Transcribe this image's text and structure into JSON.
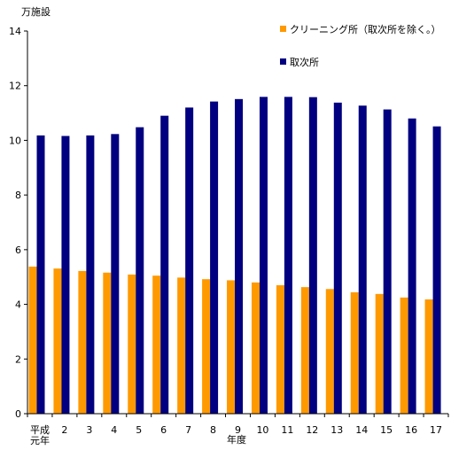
{
  "chart_data": {
    "type": "bar",
    "ylabel": "万施設",
    "xlabel": "年度",
    "categories": [
      "平成元年",
      "2",
      "3",
      "4",
      "5",
      "6",
      "7",
      "8",
      "9",
      "10",
      "11",
      "12",
      "13",
      "14",
      "15",
      "16",
      "17"
    ],
    "category_tick_lines": [
      [
        "平成",
        "元年"
      ],
      [
        "2"
      ],
      [
        "3"
      ],
      [
        "4"
      ],
      [
        "5"
      ],
      [
        "6"
      ],
      [
        "7"
      ],
      [
        "8"
      ],
      [
        "9"
      ],
      [
        "10"
      ],
      [
        "11"
      ],
      [
        "12"
      ],
      [
        "13"
      ],
      [
        "14"
      ],
      [
        "15"
      ],
      [
        "16"
      ],
      [
        "17"
      ]
    ],
    "yticks": [
      "0",
      "2",
      "4",
      "6",
      "8",
      "10",
      "12",
      "14"
    ],
    "ylim": [
      0,
      14
    ],
    "grid": false,
    "legend_position": "top-right",
    "series": [
      {
        "name": "クリーニング所（取次所を除く。）",
        "color": "#FF9900",
        "values": [
          5.38,
          5.31,
          5.22,
          5.16,
          5.09,
          5.05,
          4.98,
          4.92,
          4.88,
          4.8,
          4.7,
          4.63,
          4.56,
          4.44,
          4.38,
          4.25,
          4.18
        ]
      },
      {
        "name": "取次所",
        "color": "#000080",
        "values": [
          10.18,
          10.16,
          10.18,
          10.23,
          10.48,
          10.9,
          11.2,
          11.42,
          11.51,
          11.59,
          11.59,
          11.58,
          11.38,
          11.27,
          11.13,
          10.8,
          10.51
        ]
      }
    ]
  }
}
